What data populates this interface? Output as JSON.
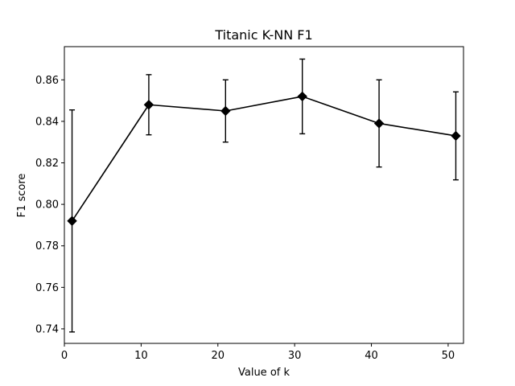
{
  "chart_data": {
    "type": "line",
    "title": "Titanic K-NN F1",
    "xlabel": "Value of k",
    "ylabel": "F1 score",
    "x": [
      1,
      11,
      21,
      31,
      41,
      51
    ],
    "series": [
      {
        "values": [
          0.792,
          0.848,
          0.845,
          0.852,
          0.839,
          0.833
        ],
        "error": [
          0.0535,
          0.0145,
          0.015,
          0.018,
          0.021,
          0.0212
        ],
        "color": "#000000",
        "marker": "diamond"
      }
    ],
    "xlim": [
      0,
      52
    ],
    "ylim": [
      0.733,
      0.876
    ],
    "xticks": [
      0,
      10,
      20,
      30,
      40,
      50
    ],
    "xtick_labels": [
      "0",
      "10",
      "20",
      "30",
      "40",
      "50"
    ],
    "yticks": [
      0.74,
      0.76,
      0.78,
      0.8,
      0.82,
      0.84,
      0.86
    ],
    "ytick_labels": [
      "0.74",
      "0.76",
      "0.78",
      "0.80",
      "0.82",
      "0.84",
      "0.86"
    ],
    "grid": false,
    "legend": false
  }
}
